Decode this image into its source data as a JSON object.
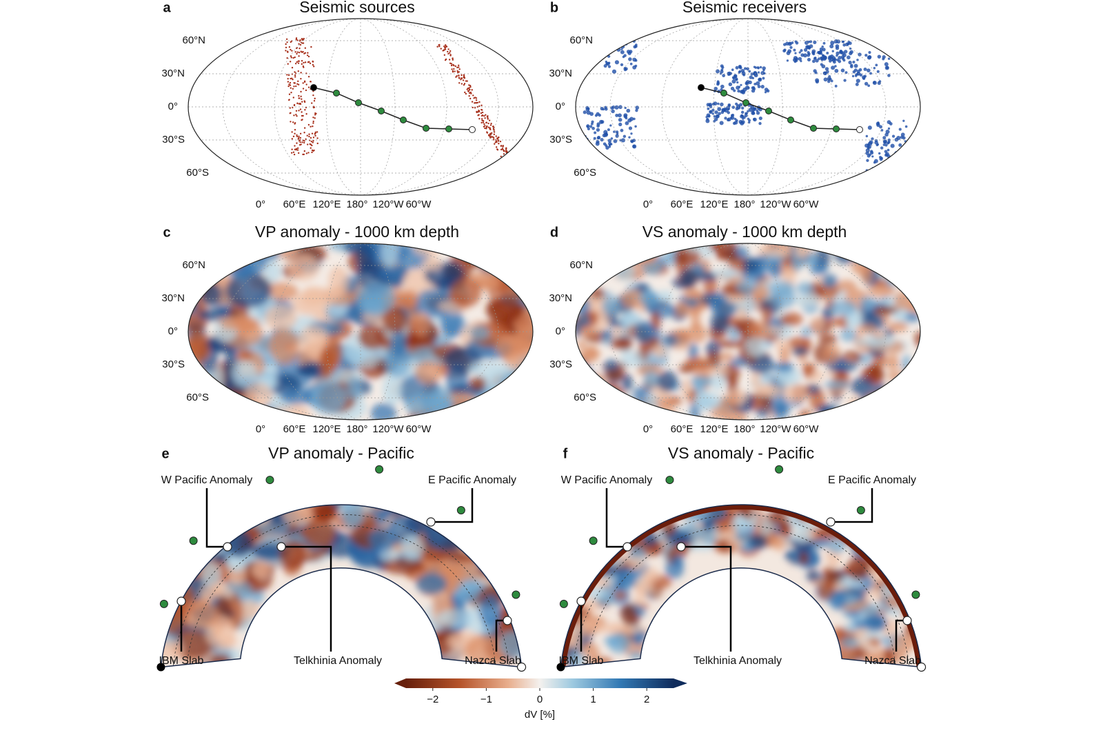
{
  "panels": [
    {
      "letter": "a",
      "title": "Seismic sources",
      "lat_labels": [
        "60°N",
        "30°N",
        "0°",
        "30°S",
        "60°S"
      ],
      "lon_labels": [
        "0°",
        "60°E",
        "120°E",
        "180°",
        "120°W",
        "60°W"
      ]
    },
    {
      "letter": "b",
      "title": "Seismic receivers",
      "lat_labels": [
        "60°N",
        "30°N",
        "0°",
        "30°S",
        "60°S"
      ],
      "lon_labels": [
        "0°",
        "60°E",
        "120°E",
        "180°",
        "120°W",
        "60°W"
      ]
    },
    {
      "letter": "c",
      "title": "VP anomaly - 1000 km depth",
      "lat_labels": [
        "60°N",
        "30°N",
        "0°",
        "30°S",
        "60°S"
      ],
      "lon_labels": [
        "0°",
        "60°E",
        "120°E",
        "180°",
        "120°W",
        "60°W"
      ]
    },
    {
      "letter": "d",
      "title": "VS anomaly - 1000 km depth",
      "lat_labels": [
        "60°N",
        "30°N",
        "0°",
        "30°S",
        "60°S"
      ],
      "lon_labels": [
        "0°",
        "60°E",
        "120°E",
        "180°",
        "120°W",
        "60°W"
      ]
    },
    {
      "letter": "e",
      "title": "VP anomaly - Pacific",
      "annotations": [
        "W Pacific Anomaly",
        "E Pacific Anomaly",
        "IBM Slab",
        "Telkhinia Anomaly",
        "Nazca Slab"
      ]
    },
    {
      "letter": "f",
      "title": "VS anomaly - Pacific",
      "annotations": [
        "W Pacific Anomaly",
        "E Pacific Anomaly",
        "IBM Slab",
        "Telkhinia Anomaly",
        "Nazca Slab"
      ]
    }
  ],
  "colorbar": {
    "label": "dV [%]",
    "lim": [
      -2.5,
      2.5
    ],
    "ticks": [
      {
        "value": -2,
        "label": "−2"
      },
      {
        "value": -1,
        "label": "−1"
      },
      0,
      1,
      2
    ]
  }
}
